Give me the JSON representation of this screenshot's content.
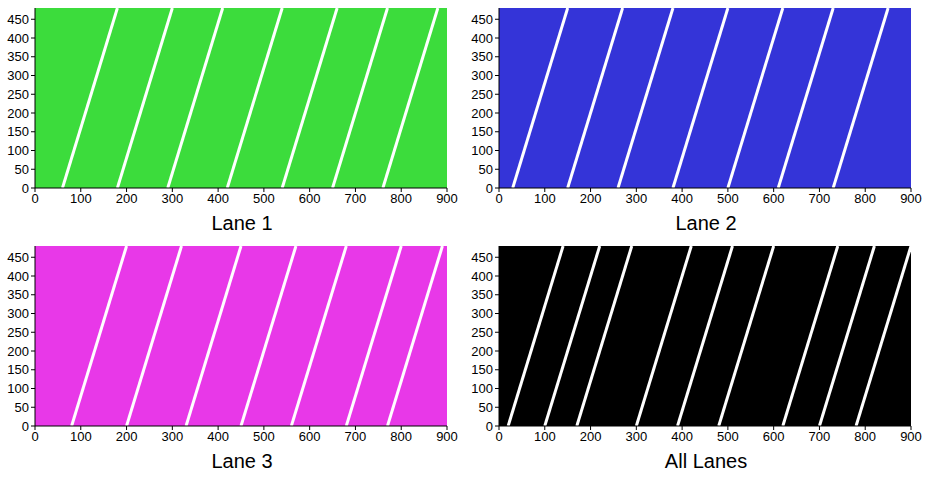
{
  "chart_data": [
    {
      "type": "line",
      "title": "Lane 1",
      "color": "#3cdc3c",
      "xlim": [
        0,
        900
      ],
      "ylim": [
        0,
        480
      ],
      "xticks": [
        0,
        100,
        200,
        300,
        400,
        500,
        600,
        700,
        800,
        900
      ],
      "yticks": [
        0,
        50,
        100,
        150,
        200,
        250,
        300,
        350,
        400,
        450
      ],
      "grid": false,
      "series": [
        {
          "color": "#ffffff",
          "x": [
            60,
            180
          ],
          "values": [
            0,
            480
          ]
        },
        {
          "color": "#ffffff",
          "x": [
            180,
            300
          ],
          "values": [
            0,
            480
          ]
        },
        {
          "color": "#ffffff",
          "x": [
            290,
            410
          ],
          "values": [
            0,
            480
          ]
        },
        {
          "color": "#ffffff",
          "x": [
            420,
            540
          ],
          "values": [
            0,
            480
          ]
        },
        {
          "color": "#ffffff",
          "x": [
            540,
            660
          ],
          "values": [
            0,
            480
          ]
        },
        {
          "color": "#ffffff",
          "x": [
            650,
            770
          ],
          "values": [
            0,
            480
          ]
        },
        {
          "color": "#ffffff",
          "x": [
            760,
            880
          ],
          "values": [
            0,
            480
          ]
        }
      ]
    },
    {
      "type": "line",
      "title": "Lane 2",
      "color": "#3434d8",
      "xlim": [
        0,
        900
      ],
      "ylim": [
        0,
        480
      ],
      "xticks": [
        0,
        100,
        200,
        300,
        400,
        500,
        600,
        700,
        800,
        900
      ],
      "yticks": [
        0,
        50,
        100,
        150,
        200,
        250,
        300,
        350,
        400,
        450
      ],
      "grid": false,
      "series": [
        {
          "color": "#ffffff",
          "x": [
            30,
            150
          ],
          "values": [
            0,
            480
          ]
        },
        {
          "color": "#ffffff",
          "x": [
            150,
            270
          ],
          "values": [
            0,
            480
          ]
        },
        {
          "color": "#ffffff",
          "x": [
            260,
            380
          ],
          "values": [
            0,
            480
          ]
        },
        {
          "color": "#ffffff",
          "x": [
            380,
            500
          ],
          "values": [
            0,
            480
          ]
        },
        {
          "color": "#ffffff",
          "x": [
            500,
            620
          ],
          "values": [
            0,
            480
          ]
        },
        {
          "color": "#ffffff",
          "x": [
            610,
            730
          ],
          "values": [
            0,
            480
          ]
        },
        {
          "color": "#ffffff",
          "x": [
            730,
            850
          ],
          "values": [
            0,
            480
          ]
        }
      ]
    },
    {
      "type": "line",
      "title": "Lane 3",
      "color": "#e838e8",
      "xlim": [
        0,
        900
      ],
      "ylim": [
        0,
        480
      ],
      "xticks": [
        0,
        100,
        200,
        300,
        400,
        500,
        600,
        700,
        800,
        900
      ],
      "yticks": [
        0,
        50,
        100,
        150,
        200,
        250,
        300,
        350,
        400,
        450
      ],
      "grid": false,
      "series": [
        {
          "color": "#ffffff",
          "x": [
            80,
            200
          ],
          "values": [
            0,
            480
          ]
        },
        {
          "color": "#ffffff",
          "x": [
            200,
            320
          ],
          "values": [
            0,
            480
          ]
        },
        {
          "color": "#ffffff",
          "x": [
            330,
            450
          ],
          "values": [
            0,
            480
          ]
        },
        {
          "color": "#ffffff",
          "x": [
            450,
            570
          ],
          "values": [
            0,
            480
          ]
        },
        {
          "color": "#ffffff",
          "x": [
            560,
            680
          ],
          "values": [
            0,
            480
          ]
        },
        {
          "color": "#ffffff",
          "x": [
            680,
            800
          ],
          "values": [
            0,
            480
          ]
        },
        {
          "color": "#ffffff",
          "x": [
            770,
            890
          ],
          "values": [
            0,
            480
          ]
        }
      ]
    },
    {
      "type": "line",
      "title": "All Lanes",
      "color": "#000000",
      "xlim": [
        0,
        900
      ],
      "ylim": [
        0,
        480
      ],
      "xticks": [
        0,
        100,
        200,
        300,
        400,
        500,
        600,
        700,
        800,
        900
      ],
      "yticks": [
        0,
        50,
        100,
        150,
        200,
        250,
        300,
        350,
        400,
        450
      ],
      "grid": false,
      "series": [
        {
          "color": "#ffffff",
          "x": [
            20,
            140
          ],
          "values": [
            0,
            480
          ]
        },
        {
          "color": "#ffffff",
          "x": [
            100,
            220
          ],
          "values": [
            0,
            480
          ]
        },
        {
          "color": "#ffffff",
          "x": [
            170,
            290
          ],
          "values": [
            0,
            480
          ]
        },
        {
          "color": "#ffffff",
          "x": [
            300,
            420
          ],
          "values": [
            0,
            480
          ]
        },
        {
          "color": "#ffffff",
          "x": [
            390,
            510
          ],
          "values": [
            0,
            480
          ]
        },
        {
          "color": "#ffffff",
          "x": [
            480,
            600
          ],
          "values": [
            0,
            480
          ]
        },
        {
          "color": "#ffffff",
          "x": [
            620,
            740
          ],
          "values": [
            0,
            480
          ]
        },
        {
          "color": "#ffffff",
          "x": [
            700,
            820
          ],
          "values": [
            0,
            480
          ]
        },
        {
          "color": "#ffffff",
          "x": [
            780,
            900
          ],
          "values": [
            0,
            480
          ]
        }
      ]
    }
  ]
}
